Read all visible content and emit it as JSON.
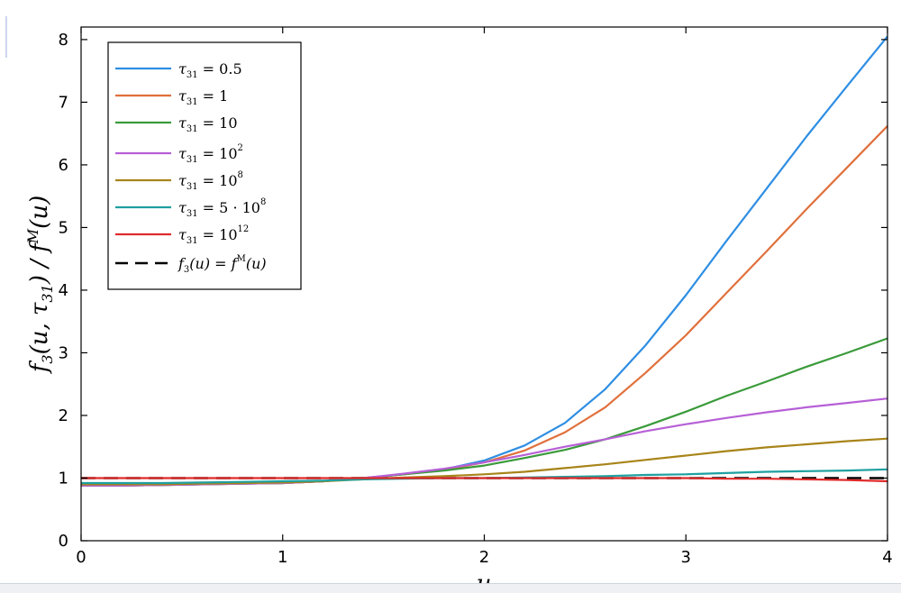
{
  "chart_data": {
    "type": "line",
    "xlabel": "u",
    "ylabel": "f_3(u, τ_31) / f^M(u)",
    "xlim": [
      0,
      4
    ],
    "ylim": [
      0,
      8.2
    ],
    "xticks": [
      "0",
      "1",
      "2",
      "3",
      "4"
    ],
    "yticks": [
      "0",
      "1",
      "2",
      "3",
      "4",
      "5",
      "6",
      "7",
      "8"
    ],
    "grid": false,
    "legend_position": "top-left",
    "x": [
      0,
      0.2,
      0.4,
      0.6,
      0.8,
      1.0,
      1.2,
      1.4,
      1.6,
      1.8,
      2.0,
      2.2,
      2.4,
      2.6,
      2.8,
      3.0,
      3.2,
      3.4,
      3.6,
      3.8,
      4.0
    ],
    "series": [
      {
        "name": "τ31 = 0.5",
        "color": "#2e8ee3",
        "style": "solid",
        "values": [
          0.88,
          0.88,
          0.89,
          0.9,
          0.91,
          0.92,
          0.95,
          1.0,
          1.06,
          1.14,
          1.28,
          1.52,
          1.88,
          2.42,
          3.12,
          3.92,
          4.78,
          5.62,
          6.46,
          7.26,
          8.05
        ]
      },
      {
        "name": "τ31 = 1",
        "color": "#e0703c",
        "style": "solid",
        "values": [
          0.88,
          0.88,
          0.89,
          0.9,
          0.91,
          0.92,
          0.95,
          1.0,
          1.06,
          1.13,
          1.25,
          1.44,
          1.73,
          2.13,
          2.68,
          3.28,
          3.95,
          4.62,
          5.3,
          5.96,
          6.62
        ]
      },
      {
        "name": "τ31 = 10",
        "color": "#3a9a3a",
        "style": "solid",
        "values": [
          0.88,
          0.88,
          0.89,
          0.9,
          0.91,
          0.92,
          0.95,
          1.0,
          1.06,
          1.12,
          1.2,
          1.32,
          1.45,
          1.62,
          1.83,
          2.06,
          2.31,
          2.54,
          2.78,
          3.0,
          3.23
        ]
      },
      {
        "name": "τ31 = 10^2",
        "color": "#b760d6",
        "style": "solid",
        "values": [
          0.88,
          0.88,
          0.89,
          0.9,
          0.91,
          0.92,
          0.95,
          1.0,
          1.07,
          1.15,
          1.25,
          1.37,
          1.5,
          1.62,
          1.75,
          1.86,
          1.96,
          2.05,
          2.13,
          2.2,
          2.27
        ]
      },
      {
        "name": "τ31 = 10^8",
        "color": "#a88419",
        "style": "solid",
        "values": [
          0.9,
          0.9,
          0.9,
          0.91,
          0.92,
          0.93,
          0.95,
          0.98,
          1.01,
          1.03,
          1.06,
          1.1,
          1.16,
          1.22,
          1.29,
          1.36,
          1.43,
          1.49,
          1.54,
          1.59,
          1.63
        ]
      },
      {
        "name": "τ31 = 5·10^8",
        "color": "#1fa0a0",
        "style": "solid",
        "values": [
          0.92,
          0.92,
          0.92,
          0.93,
          0.94,
          0.95,
          0.96,
          0.98,
          0.99,
          1.0,
          1.0,
          1.01,
          1.02,
          1.03,
          1.05,
          1.06,
          1.08,
          1.1,
          1.11,
          1.12,
          1.14
        ]
      },
      {
        "name": "τ31 = 10^12",
        "color": "#e02a2a",
        "style": "solid",
        "values": [
          1.0,
          1.0,
          1.0,
          1.0,
          1.0,
          1.0,
          1.0,
          1.0,
          1.0,
          1.0,
          1.0,
          1.0,
          1.0,
          1.0,
          1.0,
          1.0,
          0.99,
          0.99,
          0.98,
          0.97,
          0.95
        ]
      },
      {
        "name": "f3(u) = f^M(u)",
        "color": "#000000",
        "style": "dashed",
        "values": [
          1,
          1,
          1,
          1,
          1,
          1,
          1,
          1,
          1,
          1,
          1,
          1,
          1,
          1,
          1,
          1,
          1,
          1,
          1,
          1,
          1
        ]
      }
    ]
  }
}
